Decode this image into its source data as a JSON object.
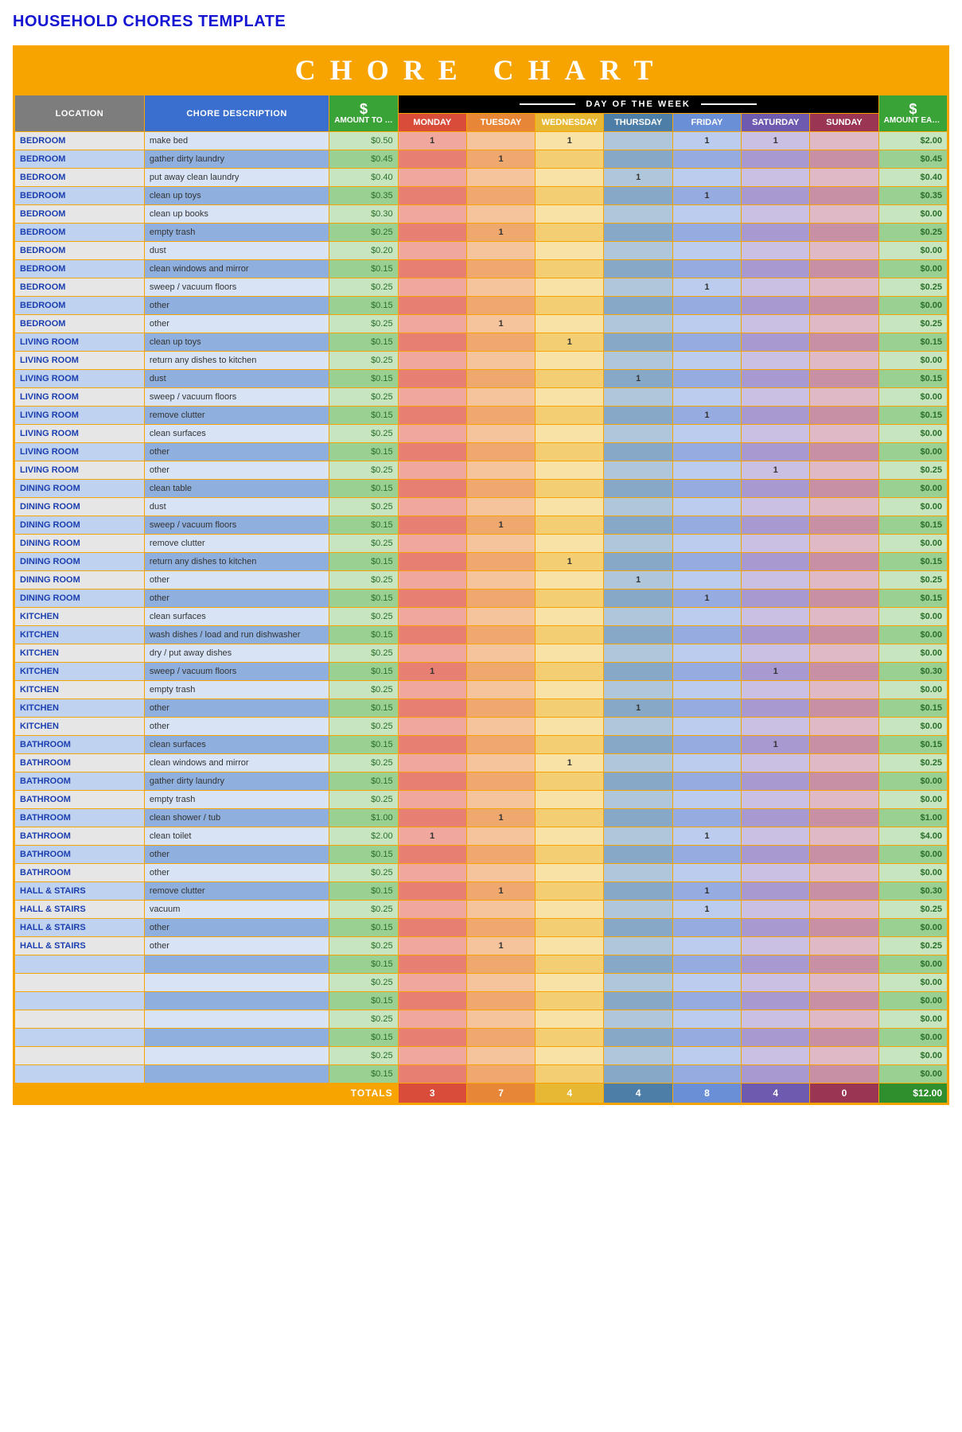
{
  "page_title": "HOUSEHOLD CHORES TEMPLATE",
  "banner": "CHORE CHART",
  "headers": {
    "location": "LOCATION",
    "description": "CHORE DESCRIPTION",
    "amount": "AMOUNT TO BE EARNED",
    "dow_label": "DAY OF THE WEEK",
    "days": [
      "MONDAY",
      "TUESDAY",
      "WEDNESDAY",
      "THURSDAY",
      "FRIDAY",
      "SATURDAY",
      "SUNDAY"
    ],
    "earned": "AMOUNT EARNED",
    "dollar_glyph": "$"
  },
  "day_keys": [
    "mon",
    "tue",
    "wed",
    "thu",
    "fri",
    "sat",
    "sun"
  ],
  "day_header_colors": {
    "mon": "#d94c3a",
    "tue": "#e88638",
    "wed": "#e7b833",
    "thu": "#4d7ea8",
    "fri": "#6a8fd6",
    "sat": "#6e5bb0",
    "sun": "#9a3654"
  },
  "row_shade_colors": {
    "loc": {
      "odd": "#e6e6e6",
      "even": "#bfd2ef"
    },
    "desc": {
      "odd": "#d8e4f5",
      "even": "#8fb0df"
    },
    "amt": {
      "odd": "#c7e6c0",
      "even": "#9ad193"
    },
    "mon": {
      "odd": "#f0a79d",
      "even": "#e77f73"
    },
    "tue": {
      "odd": "#f6c49c",
      "even": "#efa86d"
    },
    "wed": {
      "odd": "#f9e2a6",
      "even": "#f3ce72"
    },
    "thu": {
      "odd": "#b0c6da",
      "even": "#87a8c6"
    },
    "fri": {
      "odd": "#bcccee",
      "even": "#96ace0"
    },
    "sat": {
      "odd": "#cac0e3",
      "even": "#a899d0"
    },
    "sun": {
      "odd": "#e0b9c7",
      "even": "#c890a5"
    },
    "earn": {
      "odd": "#c7e6c0",
      "even": "#9ad193"
    }
  },
  "rows": [
    {
      "location": "BEDROOM",
      "desc": "make bed",
      "amount": "$0.50",
      "mon": "1",
      "tue": "",
      "wed": "1",
      "thu": "",
      "fri": "1",
      "sat": "1",
      "sun": "",
      "earned": "$2.00"
    },
    {
      "location": "BEDROOM",
      "desc": "gather dirty laundry",
      "amount": "$0.45",
      "mon": "",
      "tue": "1",
      "wed": "",
      "thu": "",
      "fri": "",
      "sat": "",
      "sun": "",
      "earned": "$0.45"
    },
    {
      "location": "BEDROOM",
      "desc": "put away clean laundry",
      "amount": "$0.40",
      "mon": "",
      "tue": "",
      "wed": "",
      "thu": "1",
      "fri": "",
      "sat": "",
      "sun": "",
      "earned": "$0.40"
    },
    {
      "location": "BEDROOM",
      "desc": "clean up toys",
      "amount": "$0.35",
      "mon": "",
      "tue": "",
      "wed": "",
      "thu": "",
      "fri": "1",
      "sat": "",
      "sun": "",
      "earned": "$0.35"
    },
    {
      "location": "BEDROOM",
      "desc": "clean up books",
      "amount": "$0.30",
      "mon": "",
      "tue": "",
      "wed": "",
      "thu": "",
      "fri": "",
      "sat": "",
      "sun": "",
      "earned": "$0.00"
    },
    {
      "location": "BEDROOM",
      "desc": "empty trash",
      "amount": "$0.25",
      "mon": "",
      "tue": "1",
      "wed": "",
      "thu": "",
      "fri": "",
      "sat": "",
      "sun": "",
      "earned": "$0.25"
    },
    {
      "location": "BEDROOM",
      "desc": "dust",
      "amount": "$0.20",
      "mon": "",
      "tue": "",
      "wed": "",
      "thu": "",
      "fri": "",
      "sat": "",
      "sun": "",
      "earned": "$0.00"
    },
    {
      "location": "BEDROOM",
      "desc": "clean windows and mirror",
      "amount": "$0.15",
      "mon": "",
      "tue": "",
      "wed": "",
      "thu": "",
      "fri": "",
      "sat": "",
      "sun": "",
      "earned": "$0.00"
    },
    {
      "location": "BEDROOM",
      "desc": "sweep / vacuum floors",
      "amount": "$0.25",
      "mon": "",
      "tue": "",
      "wed": "",
      "thu": "",
      "fri": "1",
      "sat": "",
      "sun": "",
      "earned": "$0.25"
    },
    {
      "location": "BEDROOM",
      "desc": "other",
      "amount": "$0.15",
      "mon": "",
      "tue": "",
      "wed": "",
      "thu": "",
      "fri": "",
      "sat": "",
      "sun": "",
      "earned": "$0.00"
    },
    {
      "location": "BEDROOM",
      "desc": "other",
      "amount": "$0.25",
      "mon": "",
      "tue": "1",
      "wed": "",
      "thu": "",
      "fri": "",
      "sat": "",
      "sun": "",
      "earned": "$0.25"
    },
    {
      "location": "LIVING ROOM",
      "desc": "clean up toys",
      "amount": "$0.15",
      "mon": "",
      "tue": "",
      "wed": "1",
      "thu": "",
      "fri": "",
      "sat": "",
      "sun": "",
      "earned": "$0.15"
    },
    {
      "location": "LIVING ROOM",
      "desc": "return any dishes to kitchen",
      "amount": "$0.25",
      "mon": "",
      "tue": "",
      "wed": "",
      "thu": "",
      "fri": "",
      "sat": "",
      "sun": "",
      "earned": "$0.00"
    },
    {
      "location": "LIVING ROOM",
      "desc": "dust",
      "amount": "$0.15",
      "mon": "",
      "tue": "",
      "wed": "",
      "thu": "1",
      "fri": "",
      "sat": "",
      "sun": "",
      "earned": "$0.15"
    },
    {
      "location": "LIVING ROOM",
      "desc": "sweep / vacuum floors",
      "amount": "$0.25",
      "mon": "",
      "tue": "",
      "wed": "",
      "thu": "",
      "fri": "",
      "sat": "",
      "sun": "",
      "earned": "$0.00"
    },
    {
      "location": "LIVING ROOM",
      "desc": "remove clutter",
      "amount": "$0.15",
      "mon": "",
      "tue": "",
      "wed": "",
      "thu": "",
      "fri": "1",
      "sat": "",
      "sun": "",
      "earned": "$0.15"
    },
    {
      "location": "LIVING ROOM",
      "desc": "clean surfaces",
      "amount": "$0.25",
      "mon": "",
      "tue": "",
      "wed": "",
      "thu": "",
      "fri": "",
      "sat": "",
      "sun": "",
      "earned": "$0.00"
    },
    {
      "location": "LIVING ROOM",
      "desc": "other",
      "amount": "$0.15",
      "mon": "",
      "tue": "",
      "wed": "",
      "thu": "",
      "fri": "",
      "sat": "",
      "sun": "",
      "earned": "$0.00"
    },
    {
      "location": "LIVING ROOM",
      "desc": "other",
      "amount": "$0.25",
      "mon": "",
      "tue": "",
      "wed": "",
      "thu": "",
      "fri": "",
      "sat": "1",
      "sun": "",
      "earned": "$0.25"
    },
    {
      "location": "DINING ROOM",
      "desc": "clean table",
      "amount": "$0.15",
      "mon": "",
      "tue": "",
      "wed": "",
      "thu": "",
      "fri": "",
      "sat": "",
      "sun": "",
      "earned": "$0.00"
    },
    {
      "location": "DINING ROOM",
      "desc": "dust",
      "amount": "$0.25",
      "mon": "",
      "tue": "",
      "wed": "",
      "thu": "",
      "fri": "",
      "sat": "",
      "sun": "",
      "earned": "$0.00"
    },
    {
      "location": "DINING ROOM",
      "desc": "sweep / vacuum floors",
      "amount": "$0.15",
      "mon": "",
      "tue": "1",
      "wed": "",
      "thu": "",
      "fri": "",
      "sat": "",
      "sun": "",
      "earned": "$0.15"
    },
    {
      "location": "DINING ROOM",
      "desc": "remove clutter",
      "amount": "$0.25",
      "mon": "",
      "tue": "",
      "wed": "",
      "thu": "",
      "fri": "",
      "sat": "",
      "sun": "",
      "earned": "$0.00"
    },
    {
      "location": "DINING ROOM",
      "desc": "return any dishes to kitchen",
      "amount": "$0.15",
      "mon": "",
      "tue": "",
      "wed": "1",
      "thu": "",
      "fri": "",
      "sat": "",
      "sun": "",
      "earned": "$0.15"
    },
    {
      "location": "DINING ROOM",
      "desc": "other",
      "amount": "$0.25",
      "mon": "",
      "tue": "",
      "wed": "",
      "thu": "1",
      "fri": "",
      "sat": "",
      "sun": "",
      "earned": "$0.25"
    },
    {
      "location": "DINING ROOM",
      "desc": "other",
      "amount": "$0.15",
      "mon": "",
      "tue": "",
      "wed": "",
      "thu": "",
      "fri": "1",
      "sat": "",
      "sun": "",
      "earned": "$0.15"
    },
    {
      "location": "KITCHEN",
      "desc": "clean surfaces",
      "amount": "$0.25",
      "mon": "",
      "tue": "",
      "wed": "",
      "thu": "",
      "fri": "",
      "sat": "",
      "sun": "",
      "earned": "$0.00"
    },
    {
      "location": "KITCHEN",
      "desc": "wash dishes / load and run dishwasher",
      "amount": "$0.15",
      "mon": "",
      "tue": "",
      "wed": "",
      "thu": "",
      "fri": "",
      "sat": "",
      "sun": "",
      "earned": "$0.00"
    },
    {
      "location": "KITCHEN",
      "desc": "dry / put away dishes",
      "amount": "$0.25",
      "mon": "",
      "tue": "",
      "wed": "",
      "thu": "",
      "fri": "",
      "sat": "",
      "sun": "",
      "earned": "$0.00"
    },
    {
      "location": "KITCHEN",
      "desc": "sweep / vacuum floors",
      "amount": "$0.15",
      "mon": "1",
      "tue": "",
      "wed": "",
      "thu": "",
      "fri": "",
      "sat": "1",
      "sun": "",
      "earned": "$0.30"
    },
    {
      "location": "KITCHEN",
      "desc": "empty trash",
      "amount": "$0.25",
      "mon": "",
      "tue": "",
      "wed": "",
      "thu": "",
      "fri": "",
      "sat": "",
      "sun": "",
      "earned": "$0.00"
    },
    {
      "location": "KITCHEN",
      "desc": "other",
      "amount": "$0.15",
      "mon": "",
      "tue": "",
      "wed": "",
      "thu": "1",
      "fri": "",
      "sat": "",
      "sun": "",
      "earned": "$0.15"
    },
    {
      "location": "KITCHEN",
      "desc": "other",
      "amount": "$0.25",
      "mon": "",
      "tue": "",
      "wed": "",
      "thu": "",
      "fri": "",
      "sat": "",
      "sun": "",
      "earned": "$0.00"
    },
    {
      "location": "BATHROOM",
      "desc": "clean surfaces",
      "amount": "$0.15",
      "mon": "",
      "tue": "",
      "wed": "",
      "thu": "",
      "fri": "",
      "sat": "1",
      "sun": "",
      "earned": "$0.15"
    },
    {
      "location": "BATHROOM",
      "desc": "clean windows and mirror",
      "amount": "$0.25",
      "mon": "",
      "tue": "",
      "wed": "1",
      "thu": "",
      "fri": "",
      "sat": "",
      "sun": "",
      "earned": "$0.25"
    },
    {
      "location": "BATHROOM",
      "desc": "gather dirty laundry",
      "amount": "$0.15",
      "mon": "",
      "tue": "",
      "wed": "",
      "thu": "",
      "fri": "",
      "sat": "",
      "sun": "",
      "earned": "$0.00"
    },
    {
      "location": "BATHROOM",
      "desc": "empty trash",
      "amount": "$0.25",
      "mon": "",
      "tue": "",
      "wed": "",
      "thu": "",
      "fri": "",
      "sat": "",
      "sun": "",
      "earned": "$0.00"
    },
    {
      "location": "BATHROOM",
      "desc": "clean shower / tub",
      "amount": "$1.00",
      "mon": "",
      "tue": "1",
      "wed": "",
      "thu": "",
      "fri": "",
      "sat": "",
      "sun": "",
      "earned": "$1.00"
    },
    {
      "location": "BATHROOM",
      "desc": "clean toilet",
      "amount": "$2.00",
      "mon": "1",
      "tue": "",
      "wed": "",
      "thu": "",
      "fri": "1",
      "sat": "",
      "sun": "",
      "earned": "$4.00"
    },
    {
      "location": "BATHROOM",
      "desc": "other",
      "amount": "$0.15",
      "mon": "",
      "tue": "",
      "wed": "",
      "thu": "",
      "fri": "",
      "sat": "",
      "sun": "",
      "earned": "$0.00"
    },
    {
      "location": "BATHROOM",
      "desc": "other",
      "amount": "$0.25",
      "mon": "",
      "tue": "",
      "wed": "",
      "thu": "",
      "fri": "",
      "sat": "",
      "sun": "",
      "earned": "$0.00"
    },
    {
      "location": "HALL & STAIRS",
      "desc": "remove clutter",
      "amount": "$0.15",
      "mon": "",
      "tue": "1",
      "wed": "",
      "thu": "",
      "fri": "1",
      "sat": "",
      "sun": "",
      "earned": "$0.30"
    },
    {
      "location": "HALL & STAIRS",
      "desc": "vacuum",
      "amount": "$0.25",
      "mon": "",
      "tue": "",
      "wed": "",
      "thu": "",
      "fri": "1",
      "sat": "",
      "sun": "",
      "earned": "$0.25"
    },
    {
      "location": "HALL & STAIRS",
      "desc": "other",
      "amount": "$0.15",
      "mon": "",
      "tue": "",
      "wed": "",
      "thu": "",
      "fri": "",
      "sat": "",
      "sun": "",
      "earned": "$0.00"
    },
    {
      "location": "HALL & STAIRS",
      "desc": "other",
      "amount": "$0.25",
      "mon": "",
      "tue": "1",
      "wed": "",
      "thu": "",
      "fri": "",
      "sat": "",
      "sun": "",
      "earned": "$0.25"
    },
    {
      "location": "",
      "desc": "",
      "amount": "$0.15",
      "mon": "",
      "tue": "",
      "wed": "",
      "thu": "",
      "fri": "",
      "sat": "",
      "sun": "",
      "earned": "$0.00"
    },
    {
      "location": "",
      "desc": "",
      "amount": "$0.25",
      "mon": "",
      "tue": "",
      "wed": "",
      "thu": "",
      "fri": "",
      "sat": "",
      "sun": "",
      "earned": "$0.00"
    },
    {
      "location": "",
      "desc": "",
      "amount": "$0.15",
      "mon": "",
      "tue": "",
      "wed": "",
      "thu": "",
      "fri": "",
      "sat": "",
      "sun": "",
      "earned": "$0.00"
    },
    {
      "location": "",
      "desc": "",
      "amount": "$0.25",
      "mon": "",
      "tue": "",
      "wed": "",
      "thu": "",
      "fri": "",
      "sat": "",
      "sun": "",
      "earned": "$0.00"
    },
    {
      "location": "",
      "desc": "",
      "amount": "$0.15",
      "mon": "",
      "tue": "",
      "wed": "",
      "thu": "",
      "fri": "",
      "sat": "",
      "sun": "",
      "earned": "$0.00"
    },
    {
      "location": "",
      "desc": "",
      "amount": "$0.25",
      "mon": "",
      "tue": "",
      "wed": "",
      "thu": "",
      "fri": "",
      "sat": "",
      "sun": "",
      "earned": "$0.00"
    },
    {
      "location": "",
      "desc": "",
      "amount": "$0.15",
      "mon": "",
      "tue": "",
      "wed": "",
      "thu": "",
      "fri": "",
      "sat": "",
      "sun": "",
      "earned": "$0.00"
    }
  ],
  "totals": {
    "label": "TOTALS",
    "mon": "3",
    "tue": "7",
    "wed": "4",
    "thu": "4",
    "fri": "8",
    "sat": "4",
    "sun": "0",
    "earned": "$12.00"
  }
}
